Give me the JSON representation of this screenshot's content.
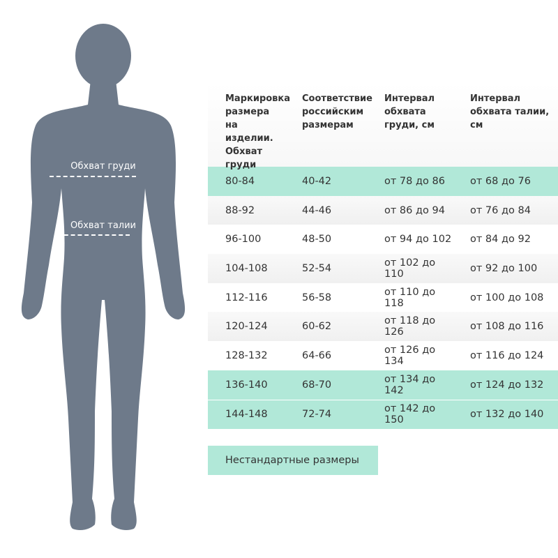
{
  "figure": {
    "chest_label": "Обхват груди",
    "waist_label": "Обхват талии",
    "color": "#6e7a8a"
  },
  "table": {
    "headers": [
      "Маркировка размера на изделии. Обхват груди",
      "Соответствие российским размерам",
      "Интервал обхвата груди, см",
      "Интервал обхвата талии, см"
    ],
    "rows": [
      {
        "marking": "80-84",
        "ru": "40-42",
        "chest": "от 78 до 86",
        "waist": "от 68 до 76",
        "highlight": true
      },
      {
        "marking": "88-92",
        "ru": "44-46",
        "chest": "от 86 до 94",
        "waist": "от 76 до 84",
        "highlight": false
      },
      {
        "marking": "96-100",
        "ru": "48-50",
        "chest": "от 94 до 102",
        "waist": "от 84 до 92",
        "highlight": false
      },
      {
        "marking": "104-108",
        "ru": "52-54",
        "chest": "от 102 до 110",
        "waist": "от 92 до 100",
        "highlight": false
      },
      {
        "marking": "112-116",
        "ru": "56-58",
        "chest": "от 110 до 118",
        "waist": "от 100 до 108",
        "highlight": false
      },
      {
        "marking": "120-124",
        "ru": "60-62",
        "chest": "от 118 до 126",
        "waist": "от 108 до 116",
        "highlight": false
      },
      {
        "marking": "128-132",
        "ru": "64-66",
        "chest": "от 126 до 134",
        "waist": "от 116 до 124",
        "highlight": false
      },
      {
        "marking": "136-140",
        "ru": "68-70",
        "chest": "от 134 до 142",
        "waist": "от 124 до 132",
        "highlight": true
      },
      {
        "marking": "144-148",
        "ru": "72-74",
        "chest": "от 142 до 150",
        "waist": "от 132 до 140",
        "highlight": true
      }
    ]
  },
  "legend": {
    "nonstandard_label": "Нестандартные размеры",
    "highlight_color": "#b1e8d8"
  }
}
